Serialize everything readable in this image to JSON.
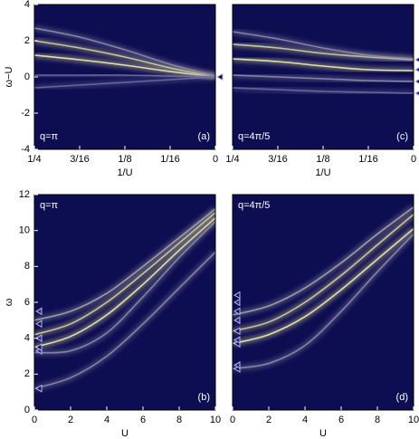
{
  "chart_data": [
    {
      "type": "line",
      "x_label": "1/U",
      "y_label": "ω−U",
      "annotation": "q=π",
      "panel_label": "(a)",
      "xlim": [
        0.25,
        0
      ],
      "xticks": [
        {
          "value": 0.25,
          "label": "1/4"
        },
        {
          "value": 0.1875,
          "label": "3/16"
        },
        {
          "value": 0.125,
          "label": "1/8"
        },
        {
          "value": 0.0625,
          "label": "1/16"
        },
        0
      ],
      "ylim": [
        -4,
        4
      ],
      "yticks": [
        -4,
        -2,
        0,
        2,
        4
      ],
      "x": [
        0.25,
        0.1875,
        0.125,
        0.0625,
        0
      ],
      "series": [
        {
          "color": "#f4f0a8",
          "values": [
            1.2,
            0.95,
            0.65,
            0.3,
            0
          ]
        },
        {
          "color": "#d8d49a",
          "values": [
            2.0,
            1.6,
            1.1,
            0.5,
            0
          ]
        },
        {
          "color": "#8e8ca8",
          "values": [
            2.7,
            2.2,
            1.5,
            0.7,
            0.05
          ]
        },
        {
          "color": "#6e6ea0",
          "values": [
            0.1,
            0.1,
            0.1,
            0.05,
            0
          ]
        },
        {
          "color": "#6e6ea0",
          "values": [
            -0.6,
            -0.45,
            -0.3,
            -0.15,
            0
          ]
        }
      ],
      "markers": {
        "x": [
          0
        ],
        "y": [
          0
        ]
      }
    },
    {
      "type": "line",
      "x_label": "U",
      "y_label": "ω",
      "annotation": "q=π",
      "panel_label": "(b)",
      "xlim": [
        0,
        10
      ],
      "xticks": [
        0,
        2,
        4,
        6,
        8,
        10
      ],
      "ylim": [
        0,
        12
      ],
      "yticks": [
        0,
        2,
        4,
        6,
        8,
        10,
        12
      ],
      "x": [
        0,
        2,
        4,
        6,
        8,
        10
      ],
      "series": [
        {
          "color": "#f4f0a8",
          "values": [
            3.5,
            4.1,
            5.3,
            7.0,
            8.9,
            10.7
          ]
        },
        {
          "color": "#d8d49a",
          "values": [
            4.2,
            4.8,
            6.0,
            7.6,
            9.3,
            11.0
          ]
        },
        {
          "color": "#a8a6a8",
          "values": [
            5.0,
            5.5,
            6.5,
            8.0,
            9.6,
            11.2
          ]
        },
        {
          "color": "#8e8ca8",
          "values": [
            3.2,
            3.3,
            4.3,
            6.3,
            8.5,
            10.5
          ]
        },
        {
          "color": "#8e8ca8",
          "values": [
            1.2,
            1.8,
            3.0,
            4.8,
            6.8,
            8.8
          ]
        }
      ],
      "markers": {
        "x": [
          0,
          0,
          0,
          0,
          0,
          0
        ],
        "y": [
          1.2,
          3.3,
          3.5,
          4.0,
          4.8,
          5.5
        ]
      }
    },
    {
      "type": "line",
      "x_label": "1/U",
      "annotation": "q=4π/5",
      "panel_label": "(c)",
      "xlim": [
        0.25,
        0
      ],
      "xticks": [
        {
          "value": 0.25,
          "label": "1/4"
        },
        {
          "value": 0.1875,
          "label": "3/16"
        },
        {
          "value": 0.125,
          "label": "1/8"
        },
        {
          "value": 0.0625,
          "label": "1/16"
        },
        0
      ],
      "ylim": [
        -4,
        4
      ],
      "x": [
        0.25,
        0.1875,
        0.125,
        0.0625,
        0
      ],
      "series": [
        {
          "color": "#f4f0a8",
          "values": [
            1.0,
            0.85,
            0.6,
            0.4,
            0.35
          ]
        },
        {
          "color": "#d8d49a",
          "values": [
            1.8,
            1.6,
            1.3,
            1.1,
            0.95
          ]
        },
        {
          "color": "#8e8ca8",
          "values": [
            2.5,
            2.1,
            1.6,
            1.2,
            1.0
          ]
        },
        {
          "color": "#8e8ca8",
          "values": [
            0.1,
            0.0,
            -0.1,
            -0.2,
            -0.25
          ]
        },
        {
          "color": "#6e6ea0",
          "values": [
            -0.6,
            -0.7,
            -0.8,
            -0.85,
            -0.9
          ]
        }
      ],
      "markers": {
        "x": [
          0,
          0,
          0,
          0
        ],
        "y": [
          0.95,
          0.4,
          -0.25,
          -0.9
        ]
      }
    },
    {
      "type": "line",
      "x_label": "U",
      "annotation": "q=4π/5",
      "panel_label": "(d)",
      "xlim": [
        0,
        10
      ],
      "xticks": [
        0,
        2,
        4,
        6,
        8,
        10
      ],
      "ylim": [
        0,
        12
      ],
      "x": [
        0,
        2,
        4,
        6,
        8,
        10
      ],
      "series": [
        {
          "color": "#f4f0a8",
          "values": [
            3.7,
            4.2,
            5.2,
            6.7,
            8.4,
            10.1
          ]
        },
        {
          "color": "#d8d49a",
          "values": [
            4.4,
            4.9,
            6.0,
            7.5,
            9.2,
            10.9
          ]
        },
        {
          "color": "#a8a6a8",
          "values": [
            5.3,
            5.8,
            6.8,
            8.2,
            9.8,
            11.3
          ]
        },
        {
          "color": "#8e8ca8",
          "values": [
            2.3,
            2.6,
            3.6,
            5.5,
            7.7,
            9.8
          ]
        }
      ],
      "markers": {
        "x": [
          0,
          0,
          0,
          0,
          0,
          0,
          0,
          0,
          0
        ],
        "y": [
          2.3,
          2.5,
          3.7,
          3.9,
          4.4,
          5.0,
          5.5,
          6.0,
          6.4
        ]
      }
    }
  ]
}
